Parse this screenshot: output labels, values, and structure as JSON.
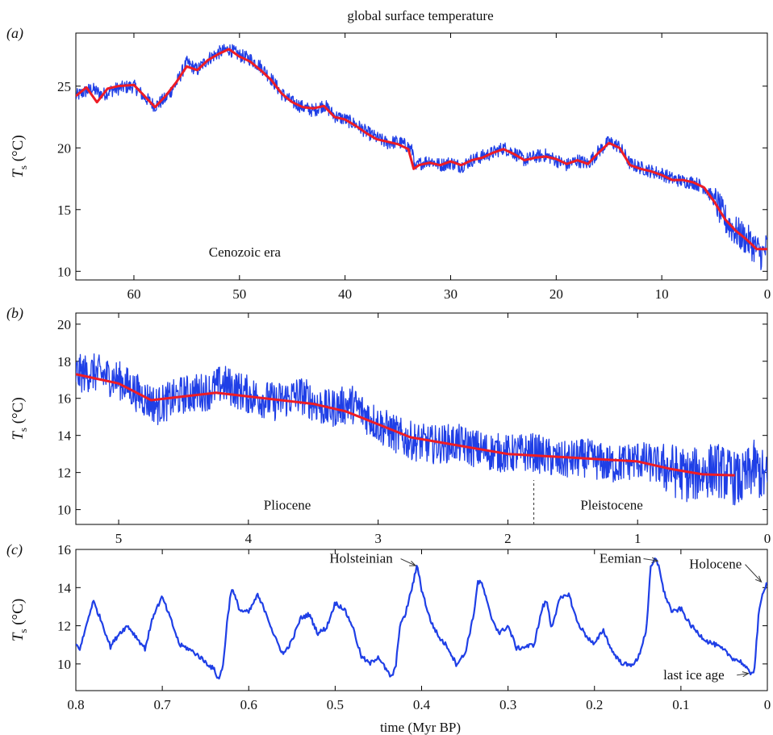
{
  "title": "global surface temperature",
  "x_axis_label": "time (Myr BP)",
  "colors": {
    "data": "#1f3fe6",
    "smooth": "#ee1c25",
    "axis": "#000000"
  },
  "chart_data": [
    {
      "type": "line",
      "panel_tag": "(a)",
      "ylabel": "Ts (°C)",
      "xlim": [
        65.5,
        0
      ],
      "ylim": [
        9.3,
        29.3
      ],
      "xticks": [
        60,
        50,
        40,
        30,
        20,
        10,
        0
      ],
      "yticks": [
        10,
        15,
        20,
        25
      ],
      "annotations": [
        {
          "text": "Cenozoic era",
          "x": 49.5,
          "y": 11.2
        }
      ],
      "series": [
        {
          "style": "raw",
          "x": [
            65.5,
            64,
            63,
            62,
            61,
            60,
            59,
            58,
            57,
            56,
            55,
            54,
            53,
            52,
            51,
            50,
            49,
            48,
            47,
            46,
            45,
            44,
            43,
            42,
            41,
            40,
            39,
            38,
            37,
            36,
            35,
            34,
            33.5,
            33.4,
            33,
            32,
            31,
            30,
            29,
            28,
            27,
            26,
            25,
            24,
            23,
            22,
            21,
            20,
            19,
            18,
            17,
            16,
            15,
            14,
            13,
            12,
            11,
            10,
            9,
            8,
            7,
            6,
            5,
            4,
            3,
            2,
            1,
            0.5,
            0
          ],
          "y": [
            24.2,
            24.8,
            24.3,
            24.7,
            24.9,
            25.0,
            24.1,
            23.4,
            24.0,
            25.2,
            26.9,
            26.3,
            27.2,
            27.7,
            28.0,
            27.5,
            27.2,
            26.6,
            25.6,
            24.4,
            23.7,
            23.3,
            23.0,
            23.5,
            22.6,
            22.3,
            21.9,
            21.3,
            20.8,
            20.4,
            20.5,
            20.1,
            19.6,
            18.2,
            18.7,
            19.0,
            18.6,
            18.8,
            18.5,
            19.0,
            19.3,
            19.6,
            20.0,
            19.6,
            19.0,
            19.3,
            19.4,
            19.0,
            18.6,
            19.0,
            18.7,
            19.7,
            20.5,
            20.1,
            18.7,
            18.4,
            18.1,
            17.9,
            17.5,
            17.3,
            17.2,
            16.8,
            15.8,
            14.2,
            13.2,
            12.6,
            11.8,
            11.3,
            12.0
          ]
        },
        {
          "style": "smoothed",
          "x": [
            65.5,
            64.5,
            63.5,
            62.5,
            61.5,
            60,
            59,
            58,
            57,
            56,
            55,
            54,
            53,
            52,
            51,
            50,
            49,
            48,
            47,
            46,
            45,
            44,
            43,
            42,
            41,
            40,
            39,
            38,
            37,
            36,
            35,
            34,
            33.5,
            33,
            32,
            31,
            30,
            29,
            28,
            27,
            26,
            25,
            24,
            23,
            22,
            21,
            20,
            19,
            18,
            17,
            16,
            15,
            14,
            13,
            12,
            11,
            10,
            9,
            8,
            7,
            6,
            5,
            4,
            3,
            2,
            1,
            0
          ],
          "y": [
            24.2,
            24.9,
            23.7,
            24.8,
            25.0,
            25.1,
            24.2,
            23.3,
            24.2,
            25.3,
            26.6,
            26.3,
            27.1,
            27.6,
            28.0,
            27.4,
            27.0,
            26.3,
            25.5,
            24.4,
            23.7,
            23.3,
            23.2,
            23.4,
            22.5,
            22.3,
            21.8,
            21.2,
            20.7,
            20.5,
            20.3,
            19.9,
            18.3,
            18.6,
            18.8,
            18.6,
            18.9,
            18.6,
            19.0,
            19.2,
            19.6,
            19.9,
            19.5,
            19.0,
            19.2,
            19.3,
            19.1,
            18.7,
            19.0,
            18.7,
            19.6,
            20.4,
            20.0,
            18.6,
            18.3,
            18.1,
            17.8,
            17.4,
            17.4,
            17.2,
            16.8,
            15.6,
            14.2,
            13.3,
            12.6,
            11.8,
            11.8
          ]
        }
      ]
    },
    {
      "type": "line",
      "panel_tag": "(b)",
      "ylabel": "Ts (°C)",
      "xlim": [
        5.33,
        0
      ],
      "ylim": [
        9.2,
        20.6
      ],
      "xticks": [
        5,
        4,
        3,
        2,
        1,
        0
      ],
      "yticks": [
        10,
        12,
        14,
        16,
        18,
        20
      ],
      "annotations": [
        {
          "text": "Pliocene",
          "x": 3.7,
          "y": 10.0
        },
        {
          "text": "Pleistocene",
          "x": 1.2,
          "y": 10.0
        }
      ],
      "divider_x": 1.8,
      "series": [
        {
          "style": "raw",
          "x": [
            5.33,
            5.2,
            5.0,
            4.8,
            4.7,
            4.5,
            4.3,
            4.2,
            4.0,
            3.8,
            3.6,
            3.4,
            3.2,
            3.0,
            2.8,
            2.6,
            2.4,
            2.2,
            2.0,
            1.8,
            1.6,
            1.4,
            1.2,
            1.0,
            0.8,
            0.6,
            0.4,
            0.2,
            0.1,
            0
          ],
          "y": [
            17.3,
            17.4,
            17.0,
            16.0,
            15.6,
            16.2,
            16.4,
            16.8,
            16.2,
            15.8,
            16.2,
            15.4,
            15.7,
            14.6,
            13.8,
            13.5,
            13.6,
            13.2,
            13.0,
            13.1,
            12.6,
            12.8,
            12.4,
            12.7,
            12.3,
            11.8,
            12.2,
            11.5,
            12.3,
            11.5
          ]
        },
        {
          "style": "smoothed",
          "x": [
            5.33,
            5.0,
            4.75,
            4.5,
            4.25,
            4.0,
            3.75,
            3.5,
            3.25,
            3.0,
            2.75,
            2.5,
            2.25,
            2.0,
            1.75,
            1.5,
            1.25,
            1.0,
            0.75,
            0.5,
            0.25
          ],
          "y": [
            17.3,
            16.8,
            15.9,
            16.1,
            16.3,
            16.1,
            15.9,
            15.7,
            15.3,
            14.6,
            13.9,
            13.6,
            13.3,
            13.0,
            12.9,
            12.8,
            12.7,
            12.6,
            12.2,
            11.9,
            11.85
          ]
        }
      ]
    },
    {
      "type": "line",
      "panel_tag": "(c)",
      "ylabel": "Ts (°C)",
      "xlim": [
        0.8,
        0
      ],
      "ylim": [
        8.6,
        16.0
      ],
      "xticks": [
        0.8,
        0.7,
        0.6,
        0.5,
        0.4,
        0.3,
        0.2,
        0.1,
        0
      ],
      "yticks": [
        10,
        12,
        14,
        16
      ],
      "annotations": [
        {
          "text": "Holsteinian",
          "x": 0.47,
          "y": 15.3,
          "arrow_to": [
            0.405,
            15.15
          ]
        },
        {
          "text": "Eemian",
          "x": 0.17,
          "y": 15.3,
          "arrow_to": [
            0.125,
            15.4
          ]
        },
        {
          "text": "Holocene",
          "x": 0.06,
          "y": 15.0,
          "arrow_to": [
            0.005,
            14.3
          ]
        },
        {
          "text": "last ice age",
          "x": 0.085,
          "y": 9.2,
          "arrow_to": [
            0.02,
            9.5
          ]
        }
      ],
      "series": [
        {
          "style": "raw",
          "x": [
            0.8,
            0.795,
            0.785,
            0.78,
            0.77,
            0.76,
            0.75,
            0.74,
            0.73,
            0.72,
            0.71,
            0.7,
            0.69,
            0.68,
            0.67,
            0.66,
            0.65,
            0.64,
            0.635,
            0.63,
            0.625,
            0.62,
            0.61,
            0.6,
            0.59,
            0.58,
            0.57,
            0.56,
            0.55,
            0.54,
            0.53,
            0.52,
            0.51,
            0.5,
            0.49,
            0.48,
            0.47,
            0.46,
            0.45,
            0.44,
            0.435,
            0.43,
            0.425,
            0.42,
            0.41,
            0.405,
            0.4,
            0.39,
            0.38,
            0.37,
            0.36,
            0.35,
            0.34,
            0.335,
            0.33,
            0.32,
            0.31,
            0.3,
            0.29,
            0.28,
            0.27,
            0.26,
            0.255,
            0.25,
            0.24,
            0.235,
            0.23,
            0.22,
            0.21,
            0.2,
            0.19,
            0.18,
            0.17,
            0.16,
            0.15,
            0.14,
            0.135,
            0.13,
            0.125,
            0.12,
            0.11,
            0.1,
            0.09,
            0.08,
            0.07,
            0.06,
            0.05,
            0.04,
            0.03,
            0.02,
            0.015,
            0.01,
            0.005,
            0
          ],
          "y": [
            11.0,
            10.8,
            12.5,
            13.3,
            12.2,
            10.9,
            11.6,
            12.0,
            11.4,
            10.8,
            12.6,
            13.5,
            12.3,
            11.0,
            10.8,
            10.5,
            10.1,
            9.7,
            9.2,
            9.8,
            12.2,
            14.0,
            12.8,
            12.7,
            13.6,
            12.7,
            11.4,
            10.5,
            11.2,
            12.4,
            12.6,
            11.6,
            11.9,
            13.2,
            12.9,
            12.0,
            10.4,
            10.0,
            10.4,
            9.6,
            9.3,
            9.8,
            12.1,
            12.4,
            14.2,
            15.2,
            13.9,
            12.3,
            11.4,
            10.9,
            10.0,
            10.5,
            12.5,
            14.3,
            14.2,
            12.5,
            11.6,
            12.0,
            10.8,
            10.9,
            11.0,
            13.0,
            13.3,
            11.9,
            13.4,
            13.5,
            13.7,
            12.2,
            11.5,
            11.0,
            11.8,
            10.7,
            10.1,
            9.9,
            10.2,
            11.8,
            15.0,
            15.5,
            15.1,
            13.8,
            12.7,
            12.9,
            12.1,
            11.6,
            11.2,
            11.0,
            10.7,
            10.3,
            10.1,
            9.5,
            9.7,
            12.6,
            13.8,
            14.3
          ]
        }
      ]
    }
  ]
}
